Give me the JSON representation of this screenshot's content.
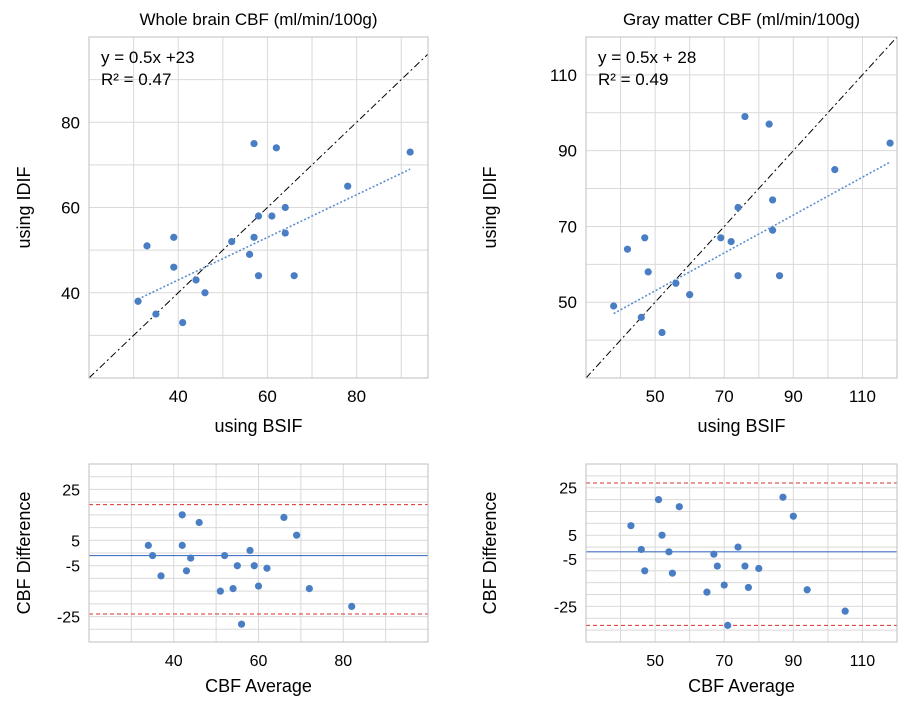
{
  "chart_data": [
    {
      "type": "scatter",
      "title": "Whole brain CBF (ml/min/100g)",
      "xlabel": "using BSIF",
      "ylabel": "using IDIF",
      "xlim": [
        20,
        96
      ],
      "ylim": [
        20,
        100
      ],
      "xticks": [
        40,
        60,
        80
      ],
      "yticks": [
        40,
        60,
        80
      ],
      "grid": true,
      "identity_line": true,
      "annotation": [
        "y = 0.5x +23",
        "R² = 0.47"
      ],
      "trendline": {
        "slope": 0.5,
        "intercept": 23,
        "x_range": [
          31,
          92
        ]
      },
      "points": [
        [
          31,
          38
        ],
        [
          35,
          35
        ],
        [
          33,
          51
        ],
        [
          39,
          53
        ],
        [
          39,
          46
        ],
        [
          41,
          33
        ],
        [
          44,
          43
        ],
        [
          46,
          40
        ],
        [
          52,
          52
        ],
        [
          56,
          49
        ],
        [
          57,
          75
        ],
        [
          58,
          58
        ],
        [
          57,
          53
        ],
        [
          58,
          44
        ],
        [
          61,
          58
        ],
        [
          62,
          74
        ],
        [
          64,
          54
        ],
        [
          64,
          60
        ],
        [
          66,
          44
        ],
        [
          78,
          65
        ],
        [
          92,
          73
        ]
      ]
    },
    {
      "type": "scatter",
      "title": "Gray matter CBF (ml/min/100g)",
      "xlabel": "using BSIF",
      "ylabel": "using IDIF",
      "xlim": [
        30,
        120
      ],
      "ylim": [
        30,
        120
      ],
      "xticks": [
        50,
        70,
        90,
        110
      ],
      "yticks": [
        50,
        70,
        90,
        110
      ],
      "grid": true,
      "identity_line": true,
      "annotation": [
        "y = 0.5x + 28",
        "R² = 0.49"
      ],
      "trendline": {
        "slope": 0.5,
        "intercept": 28,
        "x_range": [
          38,
          118
        ]
      },
      "points": [
        [
          38,
          49
        ],
        [
          42,
          64
        ],
        [
          46,
          46
        ],
        [
          47,
          67
        ],
        [
          48,
          58
        ],
        [
          52,
          42
        ],
        [
          56,
          55
        ],
        [
          60,
          52
        ],
        [
          69,
          67
        ],
        [
          72,
          66
        ],
        [
          74,
          75
        ],
        [
          74,
          57
        ],
        [
          76,
          99
        ],
        [
          83,
          97
        ],
        [
          84,
          77
        ],
        [
          84,
          69
        ],
        [
          86,
          57
        ],
        [
          102,
          85
        ],
        [
          118,
          92
        ]
      ]
    },
    {
      "type": "scatter",
      "title": "",
      "xlabel": "CBF Average",
      "ylabel": "CBF Difference",
      "xlim": [
        20,
        100
      ],
      "ylim": [
        -35,
        35
      ],
      "xticks": [
        40,
        60,
        80
      ],
      "yticks": [
        25,
        5,
        -5,
        -25
      ],
      "grid": true,
      "bias_line": -1,
      "limits_of_agreement": [
        19,
        -24
      ],
      "points": [
        [
          34,
          3
        ],
        [
          35,
          -1
        ],
        [
          37,
          -9
        ],
        [
          42,
          15
        ],
        [
          42,
          3
        ],
        [
          43,
          -7
        ],
        [
          44,
          -2
        ],
        [
          46,
          12
        ],
        [
          51,
          -15
        ],
        [
          52,
          -1
        ],
        [
          54,
          -14
        ],
        [
          55,
          -5
        ],
        [
          56,
          -28
        ],
        [
          58,
          1
        ],
        [
          59,
          -5
        ],
        [
          60,
          -13
        ],
        [
          62,
          -6
        ],
        [
          66,
          14
        ],
        [
          69,
          7
        ],
        [
          72,
          -14
        ],
        [
          82,
          -21
        ]
      ]
    },
    {
      "type": "scatter",
      "title": "",
      "xlabel": "CBF Average",
      "ylabel": "CBF Difference",
      "xlim": [
        30,
        120
      ],
      "ylim": [
        -40,
        35
      ],
      "xticks": [
        50,
        70,
        90,
        110
      ],
      "yticks": [
        25,
        5,
        -5,
        -25
      ],
      "grid": true,
      "bias_line": -2,
      "limits_of_agreement": [
        27,
        -33
      ],
      "points": [
        [
          43,
          9
        ],
        [
          46,
          -1
        ],
        [
          47,
          -10
        ],
        [
          51,
          20
        ],
        [
          52,
          5
        ],
        [
          54,
          -2
        ],
        [
          55,
          -11
        ],
        [
          57,
          17
        ],
        [
          65,
          -19
        ],
        [
          67,
          -3
        ],
        [
          68,
          -8
        ],
        [
          70,
          -16
        ],
        [
          71,
          -33
        ],
        [
          74,
          0
        ],
        [
          76,
          -8
        ],
        [
          77,
          -17
        ],
        [
          80,
          -9
        ],
        [
          87,
          21
        ],
        [
          90,
          13
        ],
        [
          94,
          -18
        ],
        [
          105,
          -27
        ]
      ]
    }
  ]
}
